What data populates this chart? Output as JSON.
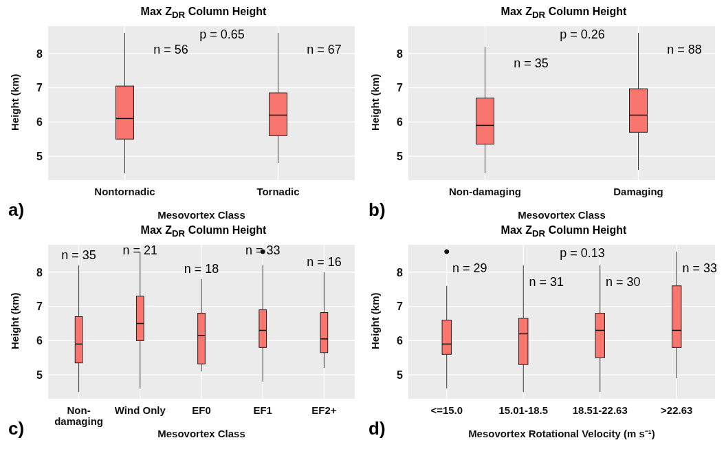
{
  "chart_data": [
    {
      "type": "box",
      "title": "Max Z$_{DR}$ Column Height",
      "xlabel": "Mesovortex Class",
      "ylabel": "Height (km)",
      "categories": [
        "Nontornadic",
        "Tornadic"
      ],
      "ylim": [
        4.3,
        8.8
      ],
      "yticks": [
        5,
        6,
        7,
        8
      ],
      "grid": true,
      "series": [
        {
          "color": "#f8766d",
          "boxes": [
            {
              "low": 4.5,
              "q1": 5.5,
              "median": 6.1,
              "q3": 7.05,
              "high": 8.6
            },
            {
              "low": 4.8,
              "q1": 5.6,
              "median": 6.2,
              "q3": 6.85,
              "high": 8.6
            }
          ]
        }
      ],
      "annotations": [
        "a)",
        "n = 56",
        "n = 67",
        "p = 0.65"
      ]
    },
    {
      "type": "box",
      "title": "Max Z$_{DR}$ Column Height",
      "xlabel": "Mesovortex Class",
      "ylabel": "Height (km)",
      "categories": [
        "Non-damaging",
        "Damaging"
      ],
      "ylim": [
        4.3,
        8.8
      ],
      "yticks": [
        5,
        6,
        7,
        8
      ],
      "grid": true,
      "series": [
        {
          "color": "#f8766d",
          "boxes": [
            {
              "low": 4.5,
              "q1": 5.35,
              "median": 5.9,
              "q3": 6.7,
              "high": 8.2
            },
            {
              "low": 4.6,
              "q1": 5.7,
              "median": 6.2,
              "q3": 6.97,
              "high": 8.6
            }
          ]
        }
      ],
      "annotations": [
        "b)",
        "n = 35",
        "n = 88",
        "p = 0.26"
      ]
    },
    {
      "type": "box",
      "title": "Max Z$_{DR}$ Column Height",
      "xlabel": "Mesovortex Class",
      "ylabel": "Height (km)",
      "categories": [
        "Non-damaging",
        "Wind Only",
        "EF0",
        "EF1",
        "EF2+"
      ],
      "ylim": [
        4.3,
        8.8
      ],
      "yticks": [
        5,
        6,
        7,
        8
      ],
      "grid": true,
      "series": [
        {
          "color": "#f8766d",
          "boxes": [
            {
              "low": 4.5,
              "q1": 5.35,
              "median": 5.9,
              "q3": 6.7,
              "high": 8.2
            },
            {
              "low": 4.6,
              "q1": 6.0,
              "median": 6.5,
              "q3": 7.3,
              "high": 8.6
            },
            {
              "low": 5.1,
              "q1": 5.32,
              "median": 6.15,
              "q3": 6.8,
              "high": 7.8
            },
            {
              "low": 4.8,
              "q1": 5.8,
              "median": 6.3,
              "q3": 6.9,
              "high": 8.2,
              "outliers": [
                8.6
              ]
            },
            {
              "low": 5.2,
              "q1": 5.65,
              "median": 6.05,
              "q3": 6.82,
              "high": 8.0
            }
          ]
        }
      ],
      "annotations": [
        "c)",
        "n = 35",
        "n = 21",
        "n = 18",
        "n = 33",
        "n = 16"
      ]
    },
    {
      "type": "box",
      "title": "Max Z$_{DR}$ Column Height",
      "xlabel": "Mesovortex Rotational Velocity (m s⁻¹)",
      "ylabel": "Height (km)",
      "categories": [
        "<=15.0",
        "15.01-18.5",
        "18.51-22.63",
        ">22.63"
      ],
      "ylim": [
        4.3,
        8.8
      ],
      "yticks": [
        5,
        6,
        7,
        8
      ],
      "grid": true,
      "series": [
        {
          "color": "#f8766d",
          "boxes": [
            {
              "low": 4.6,
              "q1": 5.6,
              "median": 5.9,
              "q3": 6.6,
              "high": 7.6,
              "outliers": [
                8.6
              ]
            },
            {
              "low": 4.5,
              "q1": 5.3,
              "median": 6.2,
              "q3": 6.65,
              "high": 8.2
            },
            {
              "low": 4.5,
              "q1": 5.5,
              "median": 6.3,
              "q3": 6.8,
              "high": 8.2
            },
            {
              "low": 4.9,
              "q1": 5.8,
              "median": 6.3,
              "q3": 7.6,
              "high": 8.6
            }
          ]
        }
      ],
      "annotations": [
        "d)",
        "n = 29",
        "n = 31",
        "n = 30",
        "n = 33",
        "p = 0.13"
      ]
    }
  ]
}
